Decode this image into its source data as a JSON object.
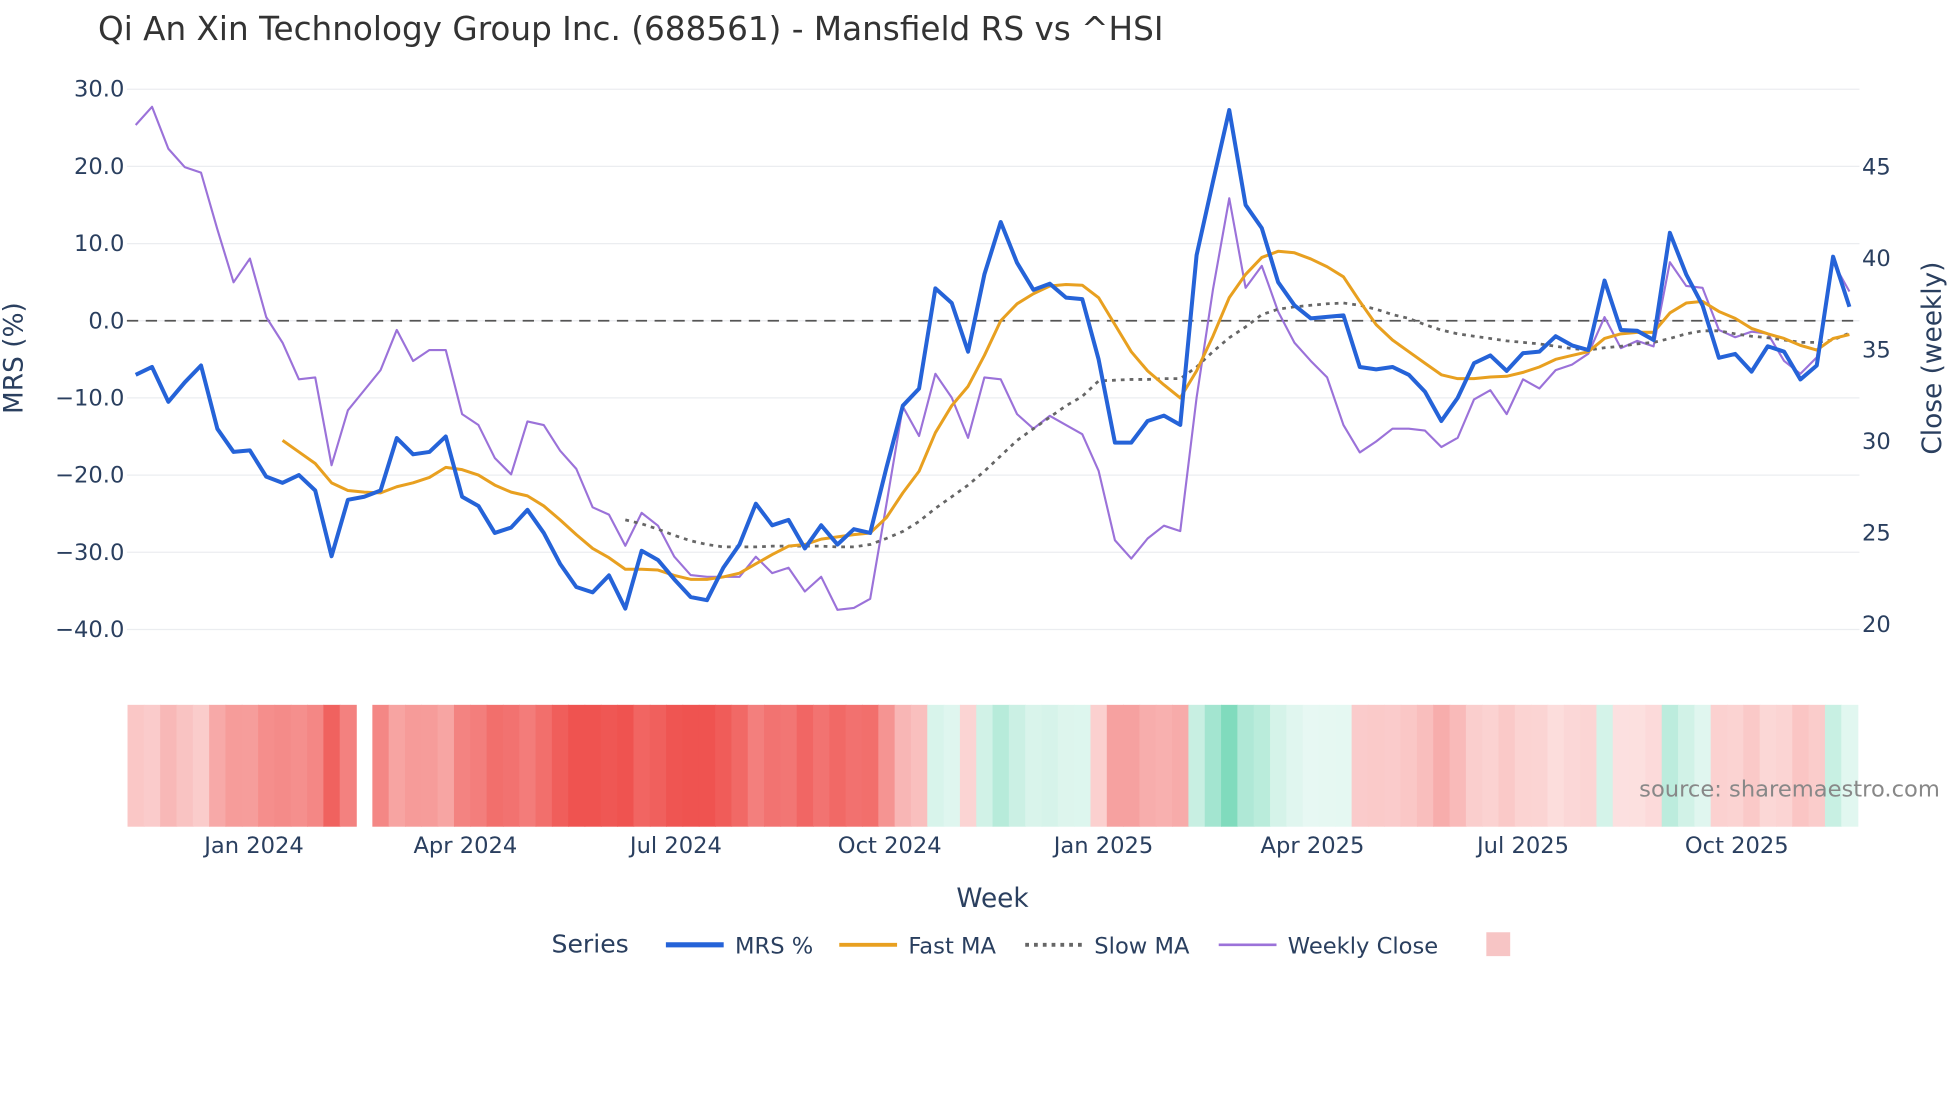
{
  "chart_data": {
    "type": "line",
    "title": "Qi An Xin Technology Group Inc. (688561) - Mansfield RS vs ^HSI",
    "xlabel": "Week",
    "ylabel": "MRS (%)",
    "y2label": "Close (weekly)",
    "ylim": [
      -42,
      31
    ],
    "y2lim": [
      19.2,
      49.3
    ],
    "yticks": [
      "30.0",
      "20.0",
      "10.0",
      "0.0",
      "−10.0",
      "−20.0",
      "−30.0",
      "−40.0"
    ],
    "ytick_values": [
      30,
      20,
      10,
      0,
      -10,
      -20,
      -30,
      -40
    ],
    "y2ticks": [
      "45",
      "40",
      "35",
      "30",
      "25",
      "20"
    ],
    "y2tick_values": [
      45,
      40,
      35,
      30,
      25,
      20
    ],
    "xticks": [
      "Jan 2024",
      "Apr 2024",
      "Jul 2024",
      "Oct 2024",
      "Jan 2025",
      "Apr 2025",
      "Jul 2025",
      "Oct 2025"
    ],
    "xtick_week_index": [
      7.25,
      20.2,
      33.1,
      46.2,
      59.3,
      72.1,
      85,
      98.1
    ],
    "reference_line": 0,
    "grid": true,
    "legend": {
      "title": "Series",
      "placement": "bottom-center",
      "entries": [
        "MRS %",
        "Fast MA",
        "Slow MA",
        "Weekly Close",
        ""
      ]
    },
    "series": [
      {
        "name": "MRS %",
        "color": "#2563d8",
        "axis": "y",
        "start": 0,
        "values": [
          -7,
          -6,
          -10.5,
          -8,
          -5.8,
          -14,
          -17,
          -16.8,
          -20.2,
          -21,
          -20,
          -22,
          -30.5,
          -23.2,
          -22.8,
          -22,
          -15.2,
          -17.3,
          -17,
          -15,
          -22.8,
          -24,
          -27.5,
          -26.8,
          -24.5,
          -27.5,
          -31.5,
          -34.5,
          -35.2,
          -33,
          -37.3,
          -29.8,
          -31,
          -33.5,
          -35.8,
          -36.2,
          -32,
          -29,
          -23.7,
          -26.5,
          -25.8,
          -29.5,
          -26.5,
          -29,
          -27,
          -27.5,
          -19,
          -11,
          -8.8,
          4.2,
          2.3,
          -4,
          6,
          12.8,
          7.5,
          4,
          4.8,
          3,
          2.8,
          -5,
          -15.8,
          -15.8,
          -13,
          -12.3,
          -13.5,
          8.5,
          18,
          27.3,
          15,
          12,
          5,
          2,
          0.3,
          0.5,
          0.7,
          -6,
          -6.3,
          -6,
          -7,
          -9.2,
          -13,
          -10,
          -5.5,
          -4.5,
          -6.5,
          -4.2,
          -4,
          -2,
          -3.2,
          -3.8,
          5.2,
          -1.2,
          -1.3,
          -2.5,
          11.4,
          6,
          2,
          -4.8,
          -4.3,
          -6.6,
          -3.3,
          -4,
          -7.6,
          -5.8,
          8.3,
          1.8
        ]
      },
      {
        "name": "Fast MA",
        "color": "#e8a020",
        "axis": "y",
        "start": 9,
        "values": [
          -15.5,
          -17,
          -18.5,
          -21,
          -22,
          -22.2,
          -22.3,
          -21.5,
          -21,
          -20.3,
          -19,
          -19.3,
          -20,
          -21.3,
          -22.2,
          -22.7,
          -24,
          -25.8,
          -27.7,
          -29.5,
          -30.7,
          -32.2,
          -32.2,
          -32.3,
          -33,
          -33.5,
          -33.5,
          -33.2,
          -32.7,
          -31.5,
          -30.3,
          -29.2,
          -29,
          -28.3,
          -28,
          -27.7,
          -27.5,
          -25.5,
          -22.3,
          -19.5,
          -14.5,
          -11,
          -8.5,
          -4.5,
          0,
          2.2,
          3.5,
          4.5,
          4.7,
          4.6,
          3,
          -0.5,
          -4,
          -6.5,
          -8.3,
          -10,
          -6.5,
          -2,
          3,
          6,
          8.2,
          9,
          8.8,
          8,
          7,
          5.7,
          2.5,
          -0.5,
          -2.5,
          -4,
          -5.5,
          -7,
          -7.5,
          -7.5,
          -7.3,
          -7.2,
          -6.7,
          -6,
          -5,
          -4.5,
          -4,
          -2.3,
          -1.7,
          -1.5,
          -1.5,
          1,
          2.3,
          2.5,
          1.2,
          0.3,
          -1,
          -1.7,
          -2.3,
          -3.2,
          -3.8,
          -2.3,
          -1.8
        ]
      },
      {
        "name": "Slow MA",
        "color": "#666666",
        "axis": "y",
        "start": 30,
        "values": [
          -25.8,
          -26.3,
          -27,
          -27.8,
          -28.5,
          -29,
          -29.3,
          -29.3,
          -29.3,
          -29.2,
          -29.2,
          -29.2,
          -29.2,
          -29.3,
          -29.3,
          -29,
          -28.2,
          -27.3,
          -26,
          -24.3,
          -22.8,
          -21.3,
          -19.5,
          -17.5,
          -15.5,
          -14,
          -12.5,
          -11,
          -9.8,
          -7.8,
          -7.7,
          -7.6,
          -7.6,
          -7.5,
          -7.5,
          -6,
          -4,
          -2.2,
          -0.8,
          0.8,
          1.5,
          1.8,
          2,
          2.2,
          2.3,
          2,
          1.5,
          0.8,
          0.3,
          -0.5,
          -1.2,
          -1.7,
          -2,
          -2.3,
          -2.6,
          -2.8,
          -3,
          -3.3,
          -3.6,
          -3.8,
          -3.5,
          -3.3,
          -3,
          -2.8,
          -2.3,
          -1.7,
          -1.3,
          -1.3,
          -1.7,
          -2,
          -2.2,
          -2.5,
          -2.8,
          -2.8,
          -2.5,
          -1.6
        ]
      },
      {
        "name": "Weekly Close",
        "color": "#9b72d9",
        "axis": "y2",
        "start": 0,
        "values": [
          47.3,
          48.3,
          46,
          45,
          44.7,
          41.6,
          38.7,
          40,
          36.8,
          35.4,
          33.4,
          33.5,
          28.7,
          31.7,
          32.8,
          33.9,
          36.1,
          34.4,
          35,
          35,
          31.5,
          30.9,
          29.1,
          28.2,
          31.1,
          30.9,
          29.5,
          28.5,
          26.4,
          26,
          24.3,
          26.1,
          25.4,
          23.7,
          22.7,
          22.6,
          22.6,
          22.6,
          23.7,
          22.8,
          23.1,
          21.8,
          22.6,
          20.8,
          20.9,
          21.4,
          26.6,
          31.9,
          30.3,
          33.7,
          32.4,
          30.2,
          33.5,
          33.4,
          31.5,
          30.7,
          31.4,
          30.9,
          30.4,
          28.4,
          24.6,
          23.6,
          24.7,
          25.4,
          25.1,
          32.4,
          38.3,
          43.3,
          38.4,
          39.6,
          37.1,
          35.4,
          34.4,
          33.5,
          30.9,
          29.4,
          30,
          30.7,
          30.7,
          30.6,
          29.7,
          30.2,
          32.3,
          32.8,
          31.5,
          33.4,
          32.9,
          33.9,
          34.2,
          34.8,
          36.8,
          35.1,
          35.5,
          35.2,
          39.8,
          38.5,
          38.4,
          36.1,
          35.7,
          36,
          35.9,
          34.4,
          33.7,
          34.6,
          39.8,
          38.2
        ]
      }
    ],
    "heatmap": {
      "source_series": "MRS %",
      "missing_week_index": 14,
      "negative_color": "#ef5350",
      "positive_color": "#66d4b0"
    }
  },
  "source_note": "source: sharemaestro.com"
}
